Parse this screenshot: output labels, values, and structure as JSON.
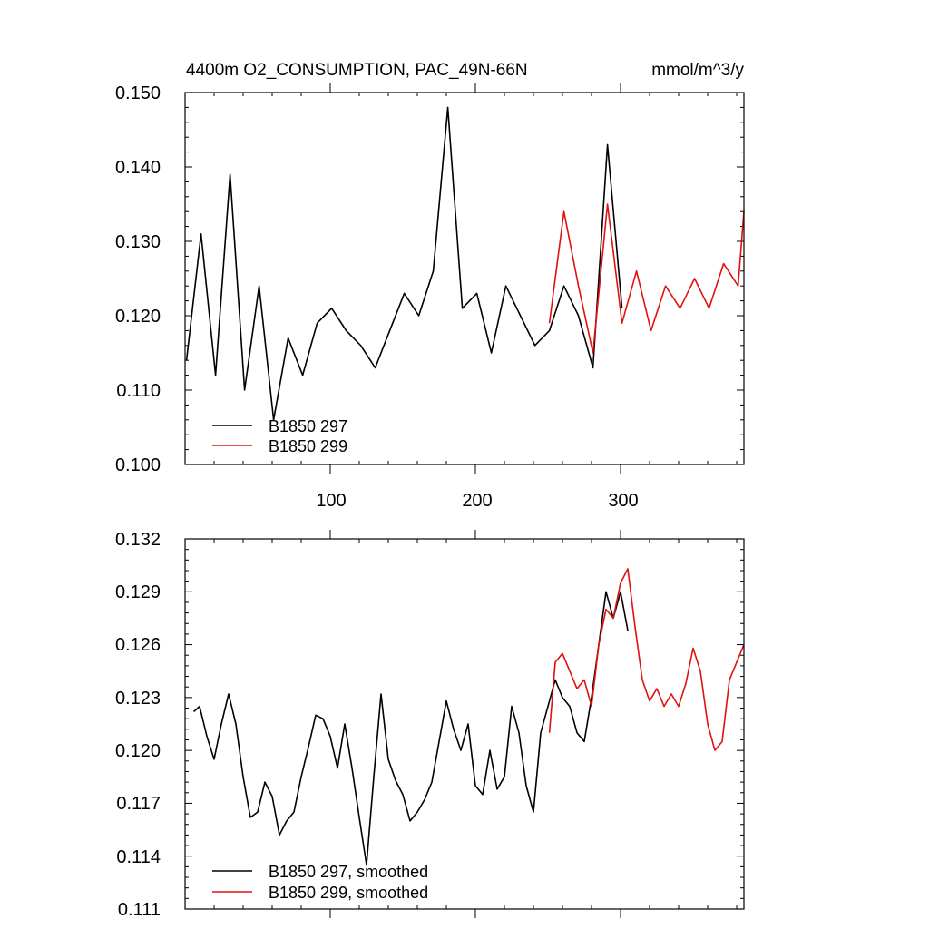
{
  "chart_data": [
    {
      "type": "line",
      "title": "4400m O2_CONSUMPTION, PAC_49N-66N",
      "units": "mmol/m^3/y",
      "xlabel": "",
      "ylabel": "",
      "xlim": [
        0,
        385
      ],
      "ylim": [
        0.1,
        0.15
      ],
      "xticks": [
        100,
        200,
        300
      ],
      "xtick_labels": [
        "100",
        "200",
        "300"
      ],
      "yticks": [
        0.1,
        0.11,
        0.12,
        0.13,
        0.14,
        0.15
      ],
      "ytick_labels": [
        "0.100",
        "0.110",
        "0.120",
        "0.130",
        "0.140",
        "0.150"
      ],
      "legend_position": "bottom-left",
      "series": [
        {
          "name": "B1850 297",
          "color": "#000000",
          "x": [
            1,
            11,
            21,
            31,
            41,
            51,
            61,
            71,
            81,
            91,
            101,
            111,
            121,
            131,
            141,
            151,
            161,
            171,
            181,
            191,
            201,
            211,
            221,
            231,
            241,
            251,
            261,
            271,
            281,
            291,
            301
          ],
          "values": [
            0.114,
            0.131,
            0.112,
            0.139,
            0.11,
            0.124,
            0.106,
            0.117,
            0.112,
            0.119,
            0.121,
            0.118,
            0.116,
            0.113,
            0.118,
            0.123,
            0.12,
            0.126,
            0.148,
            0.121,
            0.123,
            0.115,
            0.124,
            0.12,
            0.116,
            0.118,
            0.124,
            0.12,
            0.113,
            0.143,
            0.121
          ]
        },
        {
          "name": "B1850 299",
          "color": "#e01010",
          "x": [
            251,
            261,
            271,
            281,
            291,
            301,
            311,
            321,
            331,
            341,
            351,
            361,
            371,
            381,
            385
          ],
          "values": [
            0.119,
            0.134,
            0.124,
            0.115,
            0.135,
            0.119,
            0.126,
            0.118,
            0.124,
            0.121,
            0.125,
            0.121,
            0.127,
            0.124,
            0.134
          ]
        }
      ]
    },
    {
      "type": "line",
      "title": "",
      "xlabel": "",
      "ylabel": "",
      "xlim": [
        0,
        385
      ],
      "ylim": [
        0.111,
        0.132
      ],
      "xticks": [
        100,
        200,
        300
      ],
      "xtick_labels": [],
      "yticks": [
        0.111,
        0.114,
        0.117,
        0.12,
        0.123,
        0.126,
        0.129,
        0.132
      ],
      "ytick_labels": [
        "0.111",
        "0.114",
        "0.117",
        "0.120",
        "0.123",
        "0.126",
        "0.129",
        "0.132"
      ],
      "legend_position": "bottom-left",
      "series": [
        {
          "name": "B1850 297, smoothed",
          "color": "#000000",
          "x": [
            6,
            10,
            15,
            20,
            25,
            30,
            35,
            40,
            45,
            50,
            55,
            60,
            65,
            70,
            75,
            80,
            85,
            90,
            95,
            100,
            105,
            110,
            115,
            120,
            125,
            130,
            135,
            140,
            145,
            150,
            155,
            160,
            165,
            170,
            175,
            180,
            185,
            190,
            195,
            200,
            205,
            210,
            215,
            220,
            225,
            230,
            235,
            240,
            245,
            250,
            255,
            260,
            265,
            270,
            275,
            280,
            285,
            290,
            295,
            300,
            305
          ],
          "values": [
            0.1222,
            0.1225,
            0.1208,
            0.1195,
            0.1215,
            0.1232,
            0.1215,
            0.1185,
            0.1162,
            0.1165,
            0.1182,
            0.1174,
            0.1152,
            0.116,
            0.1165,
            0.1185,
            0.1202,
            0.122,
            0.1218,
            0.1208,
            0.119,
            0.1215,
            0.119,
            0.1162,
            0.1135,
            0.1185,
            0.1232,
            0.1195,
            0.1183,
            0.1175,
            0.116,
            0.1165,
            0.1172,
            0.1182,
            0.1205,
            0.1228,
            0.1212,
            0.12,
            0.1215,
            0.118,
            0.1175,
            0.12,
            0.1178,
            0.1185,
            0.1225,
            0.121,
            0.118,
            0.1165,
            0.121,
            0.1225,
            0.124,
            0.123,
            0.1225,
            0.121,
            0.1205,
            0.123,
            0.126,
            0.129,
            0.1275,
            0.129,
            0.1268
          ]
        },
        {
          "name": "B1850 299, smoothed",
          "color": "#e01010",
          "x": [
            251,
            255,
            260,
            265,
            270,
            275,
            280,
            285,
            290,
            295,
            300,
            305,
            310,
            315,
            320,
            325,
            330,
            335,
            340,
            345,
            350,
            355,
            360,
            365,
            370,
            375,
            380,
            385
          ],
          "values": [
            0.121,
            0.125,
            0.1255,
            0.1245,
            0.1235,
            0.124,
            0.1225,
            0.126,
            0.128,
            0.1275,
            0.1295,
            0.1303,
            0.127,
            0.124,
            0.1228,
            0.1235,
            0.1225,
            0.1232,
            0.1225,
            0.1238,
            0.1258,
            0.1245,
            0.1215,
            0.12,
            0.1205,
            0.124,
            0.125,
            0.126
          ]
        }
      ]
    }
  ]
}
